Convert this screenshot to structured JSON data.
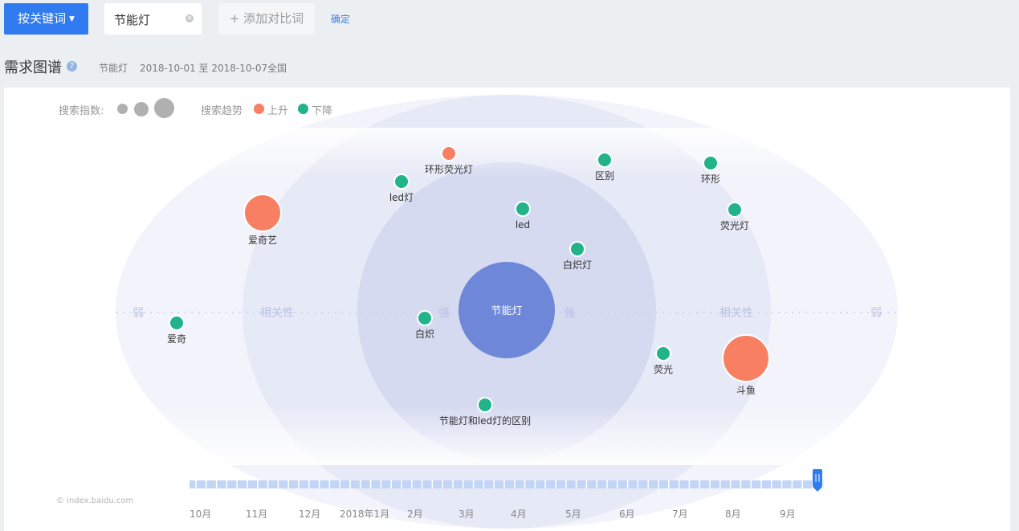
{
  "toolbar": {
    "keyword_button": "按关键词",
    "keyword_value": "节能灯",
    "add_compare": "+ 添加对比词",
    "confirm": "确定"
  },
  "header": {
    "title": "需求图谱",
    "keyword": "节能灯",
    "date_range": "2018-10-01 至 2018-10-07",
    "region": "全国"
  },
  "legend": {
    "search_index_label": "搜索指数:",
    "trend_label": "搜索趋势",
    "up_label": "上升",
    "down_label": "下降",
    "up_color": "#f87f62",
    "down_color": "#22b38a"
  },
  "graph": {
    "center_label": "节能灯",
    "axis_labels": {
      "weak_left": "弱",
      "relevance_left": "相关性",
      "strong_left": "强",
      "strong_right": "强",
      "relevance_right": "相关性",
      "weak_right": "弱"
    },
    "nodes": [
      {
        "label": "环形荧光灯",
        "trend": "up"
      },
      {
        "label": "区别",
        "trend": "down"
      },
      {
        "label": "环形",
        "trend": "down"
      },
      {
        "label": "led灯",
        "trend": "down"
      },
      {
        "label": "爱奇艺",
        "trend": "up"
      },
      {
        "label": "led",
        "trend": "down"
      },
      {
        "label": "荧光灯",
        "trend": "down"
      },
      {
        "label": "白炽灯",
        "trend": "down"
      },
      {
        "label": "爱奇",
        "trend": "down"
      },
      {
        "label": "白炽",
        "trend": "down"
      },
      {
        "label": "荧光",
        "trend": "down"
      },
      {
        "label": "斗鱼",
        "trend": "up"
      },
      {
        "label": "节能灯和led灯的区别",
        "trend": "down"
      }
    ]
  },
  "timeline": {
    "months": [
      "10月",
      "11月",
      "12月",
      "2018年1月",
      "2月",
      "3月",
      "4月",
      "5月",
      "6月",
      "7月",
      "8月",
      "9月"
    ],
    "watermark": "© index.baidu.com"
  }
}
